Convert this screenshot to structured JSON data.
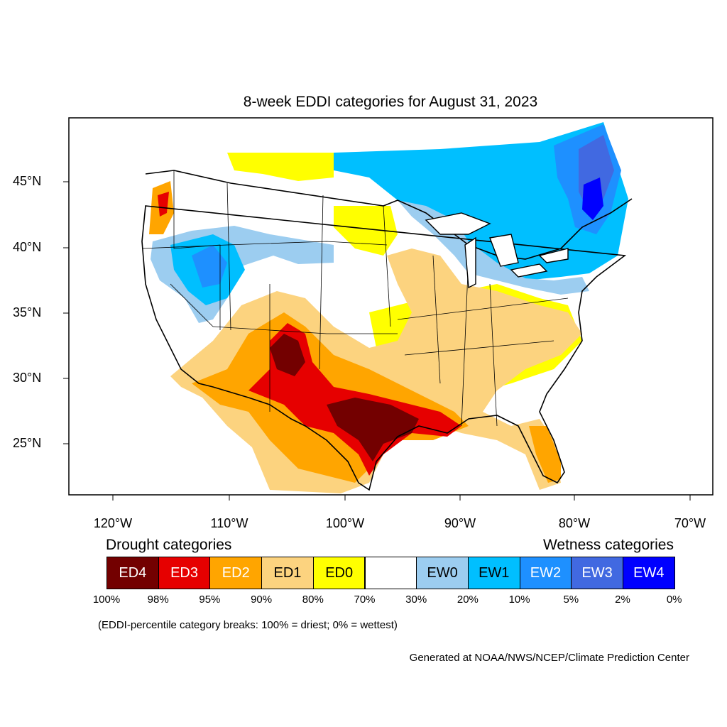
{
  "title": "8-week EDDI categories for August 31, 2023",
  "lat_labels": [
    "45°N",
    "40°N",
    "35°N",
    "30°N",
    "25°N"
  ],
  "lon_labels": [
    "120°W",
    "110°W",
    "100°W",
    "90°W",
    "80°W",
    "70°W"
  ],
  "legend": {
    "drought_title": "Drought categories",
    "wetness_title": "Wetness categories",
    "categories": [
      {
        "label": "ED4",
        "color": "#730000",
        "text_color": "#ffffff"
      },
      {
        "label": "ED3",
        "color": "#e60000",
        "text_color": "#ffffff"
      },
      {
        "label": "ED2",
        "color": "#ffa500",
        "text_color": "#ffffff"
      },
      {
        "label": "ED1",
        "color": "#fcd37f",
        "text_color": "#000000"
      },
      {
        "label": "ED0",
        "color": "#ffff00",
        "text_color": "#000000"
      },
      {
        "label": "",
        "color": "#ffffff",
        "text_color": "#000000"
      },
      {
        "label": "EW0",
        "color": "#9ccdf0",
        "text_color": "#000000"
      },
      {
        "label": "EW1",
        "color": "#00bfff",
        "text_color": "#000000"
      },
      {
        "label": "EW2",
        "color": "#1e90ff",
        "text_color": "#ffffff"
      },
      {
        "label": "EW3",
        "color": "#4169e1",
        "text_color": "#ffffff"
      },
      {
        "label": "EW4",
        "color": "#0000ff",
        "text_color": "#ffffff"
      }
    ],
    "percentiles": [
      "100%",
      "98%",
      "95%",
      "90%",
      "80%",
      "70%",
      "30%",
      "20%",
      "10%",
      "5%",
      "2%",
      "0%"
    ]
  },
  "note": "(EDDI-percentile category breaks: 100% = driest; 0% = wettest)",
  "credit": "Generated at NOAA/NWS/NCEP/Climate Prediction Center"
}
